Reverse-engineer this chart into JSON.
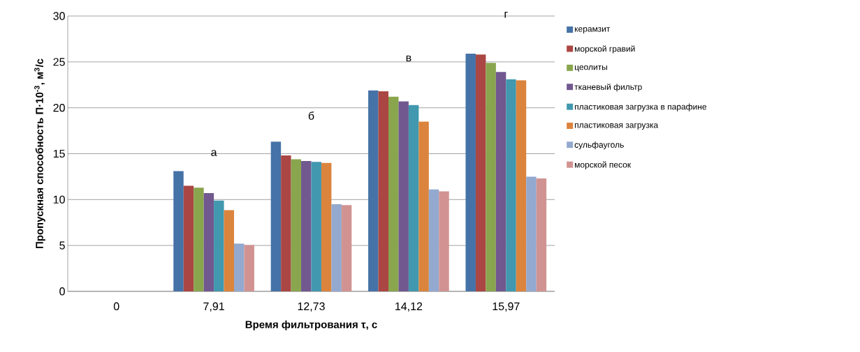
{
  "chart_data": {
    "type": "bar",
    "xlabel": "Время фильтрования τ, с",
    "ylabel": "Пропускная способность П·10$^{-3}$, м$^{3}$/с",
    "categories": [
      "0",
      "7,91",
      "12,73",
      "14,12",
      "15,97"
    ],
    "series": [
      {
        "name": "керамзит",
        "color": "#4572a7",
        "values": [
          0,
          13.1,
          16.3,
          21.9,
          25.9
        ]
      },
      {
        "name": "морской гравий",
        "color": "#aa4643",
        "values": [
          0,
          11.5,
          14.8,
          21.8,
          25.8
        ]
      },
      {
        "name": "цеолиты",
        "color": "#89a54e",
        "values": [
          0,
          11.3,
          14.4,
          21.2,
          24.9
        ]
      },
      {
        "name": "тканевый фильтр",
        "color": "#71588f",
        "values": [
          0,
          10.7,
          14.2,
          20.7,
          23.9
        ]
      },
      {
        "name": "пластиковая загрузка в парафине",
        "color": "#4198af",
        "values": [
          0,
          9.9,
          14.1,
          20.3,
          23.1
        ]
      },
      {
        "name": "пластиковая загрузка",
        "color": "#db843d",
        "values": [
          0,
          8.85,
          14.0,
          18.5,
          23.0
        ]
      },
      {
        "name": "сульфауголь",
        "color": "#93a9cf",
        "values": [
          0,
          5.2,
          9.5,
          11.1,
          12.5
        ]
      },
      {
        "name": "морской песок",
        "color": "#d19392",
        "values": [
          0,
          5.05,
          9.4,
          10.9,
          12.3
        ]
      }
    ],
    "ylim": [
      0,
      30
    ],
    "yticks": [
      0,
      5,
      10,
      15,
      20,
      25,
      30
    ],
    "grid": "y",
    "legend": "right",
    "annotations": [
      "а",
      "б",
      "в",
      "г"
    ]
  }
}
